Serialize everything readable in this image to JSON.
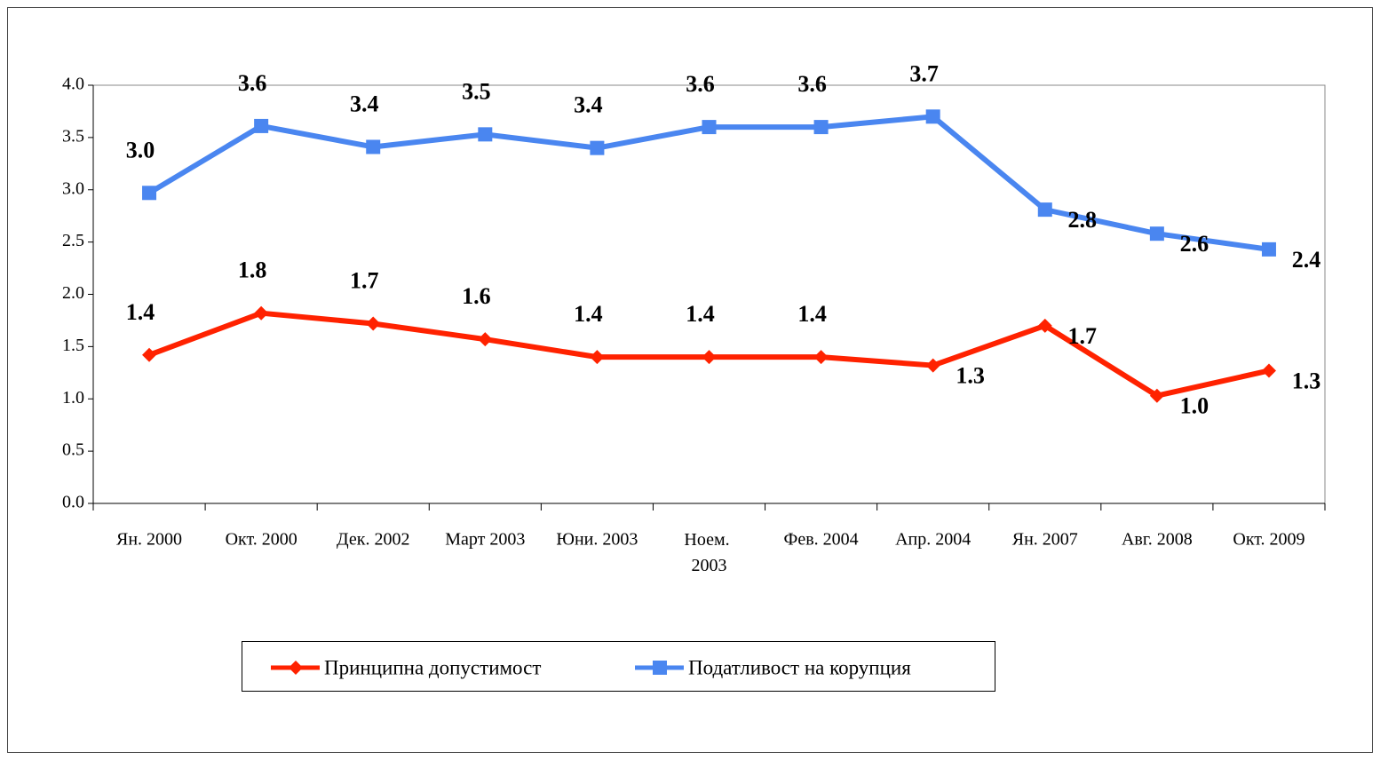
{
  "chart_data": {
    "type": "line",
    "categories": [
      "Ян. 2000",
      "Окт. 2000",
      "Дек. 2002",
      "Март 2003",
      "Юни. 2003",
      "Ноем. 2003",
      "Фев. 2004",
      "Апр. 2004",
      "Ян. 2007",
      "Авг. 2008",
      "Окт. 2009"
    ],
    "series": [
      {
        "name": "Принципна допустимост",
        "color": "#ff2200",
        "marker": "diamond",
        "values": [
          1.42,
          1.82,
          1.72,
          1.57,
          1.4,
          1.4,
          1.4,
          1.32,
          1.7,
          1.03,
          1.27
        ],
        "value_labels": [
          "1.4",
          "1.8",
          "1.7",
          "1.6",
          "1.4",
          "1.4",
          "1.4",
          "1.3",
          "1.7",
          "1.0",
          "1.3"
        ]
      },
      {
        "name": "Податливост на корупция",
        "color": "#4a86f0",
        "marker": "square",
        "values": [
          2.97,
          3.61,
          3.41,
          3.53,
          3.4,
          3.6,
          3.6,
          3.7,
          2.81,
          2.58,
          2.43
        ],
        "value_labels": [
          "3.0",
          "3.6",
          "3.4",
          "3.5",
          "3.4",
          "3.6",
          "3.6",
          "3.7",
          "2.8",
          "2.6",
          "2.4"
        ]
      }
    ],
    "ylim": [
      0,
      4
    ],
    "yticks": [
      {
        "value": 0,
        "label": "0.0"
      },
      0.5,
      {
        "value": 1,
        "label": "1.0"
      },
      1.5,
      {
        "value": 2,
        "label": "2.0"
      },
      2.5,
      {
        "value": 3,
        "label": "3.0"
      },
      3.5,
      {
        "value": 4,
        "label": "4.0"
      }
    ],
    "legend": "bottom"
  }
}
